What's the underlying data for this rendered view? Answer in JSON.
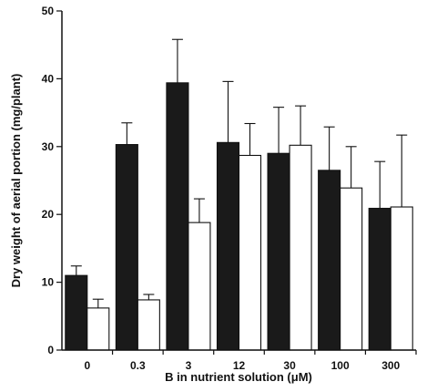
{
  "chart_data": {
    "type": "bar",
    "title": "",
    "xlabel": "B in nutrient solution (μM)",
    "ylabel": "Dry weight of aerial portion (mg/plant)",
    "ylim": [
      0,
      50
    ],
    "yticks": [
      0,
      10,
      20,
      30,
      40,
      50
    ],
    "categories": [
      "0",
      "0.3",
      "3",
      "12",
      "30",
      "100",
      "300"
    ],
    "grid": false,
    "legend": "none",
    "series": [
      {
        "fill": "#1a1a1a",
        "values": [
          11.0,
          30.3,
          39.4,
          30.6,
          29.0,
          26.5,
          20.9
        ],
        "errors": [
          1.4,
          3.2,
          6.4,
          9.0,
          6.8,
          6.4,
          6.9
        ]
      },
      {
        "fill": "#ffffff",
        "values": [
          6.2,
          7.4,
          18.8,
          28.7,
          30.2,
          23.9,
          21.1
        ],
        "errors": [
          1.3,
          0.8,
          3.5,
          4.7,
          5.8,
          6.1,
          10.6
        ]
      }
    ]
  }
}
